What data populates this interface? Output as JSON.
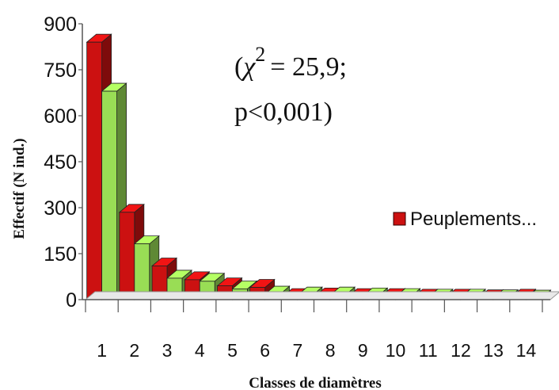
{
  "chart_data": {
    "type": "bar",
    "title": "",
    "xlabel": "Classes de diamètres",
    "ylabel": "Effectif (N ind.)",
    "ylim": [
      0,
      900
    ],
    "yticks": [
      0,
      150,
      300,
      450,
      600,
      750,
      900
    ],
    "categories": [
      "1",
      "2",
      "3",
      "4",
      "5",
      "6",
      "7",
      "8",
      "9",
      "10",
      "11",
      "12",
      "13",
      "14"
    ],
    "series": [
      {
        "name": "Peuplements...",
        "color": "#cc1111",
        "values": [
          840,
          285,
          110,
          65,
          45,
          40,
          10,
          12,
          10,
          10,
          8,
          8,
          6,
          8
        ]
      },
      {
        "color": "#99dd55",
        "values": [
          680,
          182,
          70,
          60,
          35,
          18,
          15,
          15,
          12,
          10,
          8,
          8,
          6,
          5
        ]
      }
    ],
    "grid": false,
    "three_d": true,
    "legend_position": "right",
    "annotation_lines": [
      "= 25,9;",
      "p<0,001)"
    ],
    "annotation_paren": "(",
    "annotation_symbol": "χ",
    "annotation_exponent": "2"
  }
}
